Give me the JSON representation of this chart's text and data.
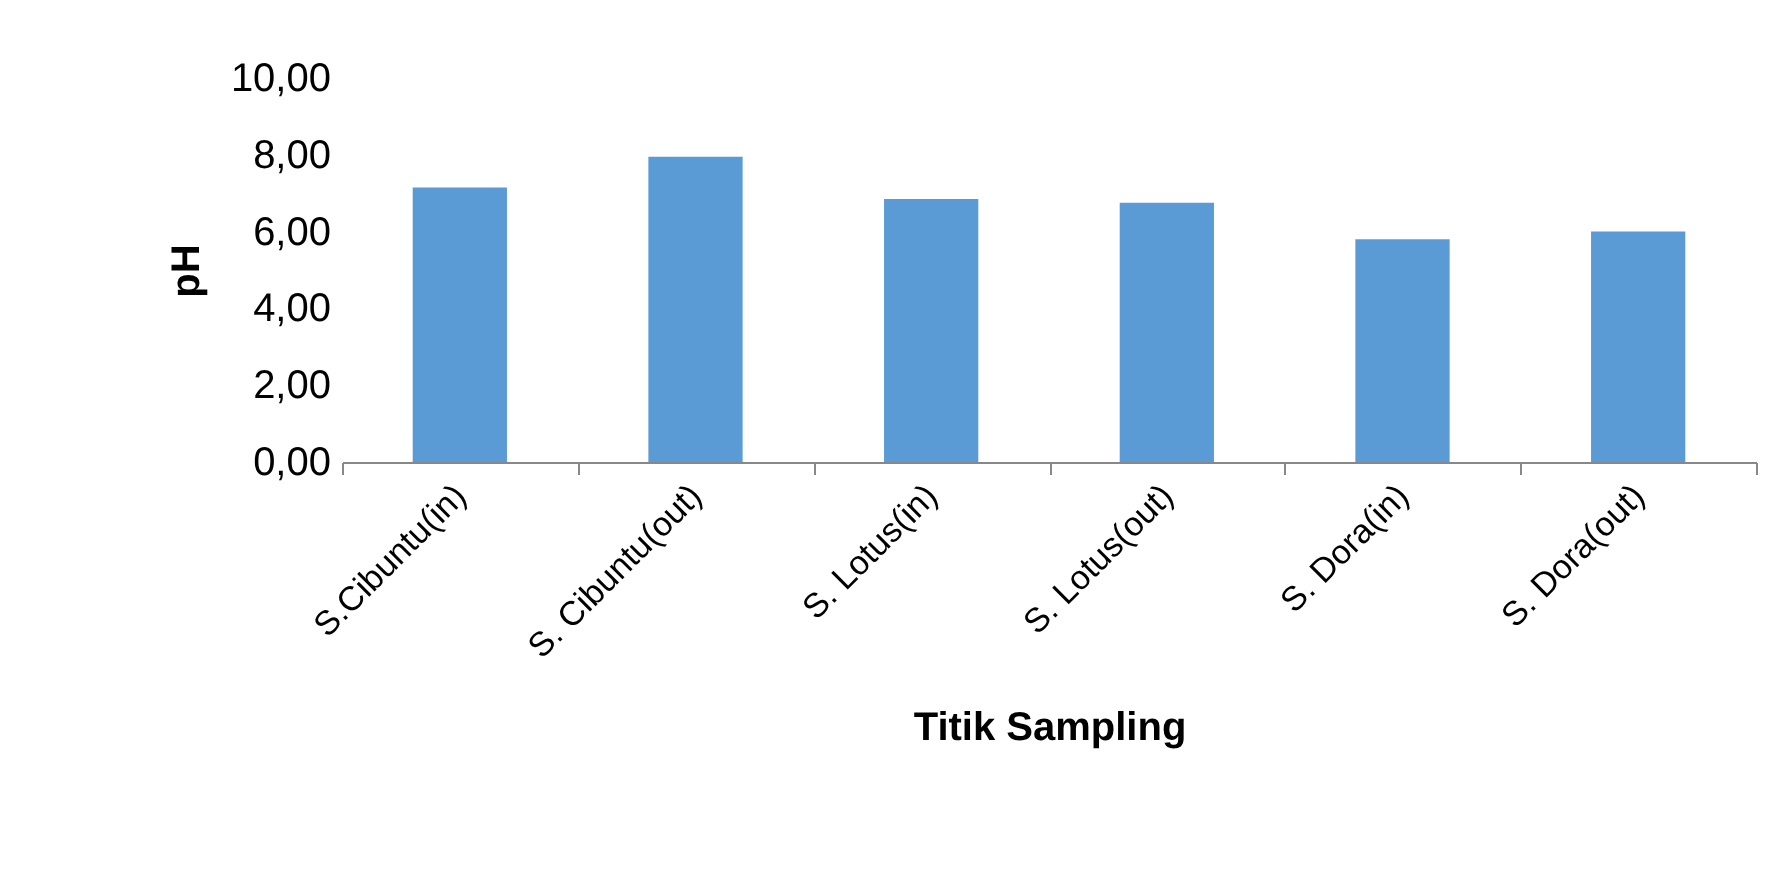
{
  "chart_data": {
    "type": "bar",
    "xlabel": "Titik Sampling",
    "ylabel": "pH",
    "categories": [
      "S.Cibuntu(in)",
      "S. Cibuntu(out)",
      "S. Lotus(in)",
      "S. Lotus(out)",
      "S. Dora(in)",
      "S. Dora(out)"
    ],
    "values": [
      7.15,
      7.95,
      6.85,
      6.75,
      5.8,
      6.0
    ],
    "color": "#5b9bd5",
    "ylim": [
      0,
      10
    ],
    "yticks": [
      {
        "value": 0,
        "label": "0,00"
      },
      {
        "value": 2,
        "label": "2,00"
      },
      {
        "value": 4,
        "label": "4,00"
      },
      {
        "value": 6,
        "label": "6,00"
      },
      {
        "value": 8,
        "label": "8,00"
      },
      {
        "value": 10,
        "label": "10,00"
      }
    ],
    "grid": false
  }
}
